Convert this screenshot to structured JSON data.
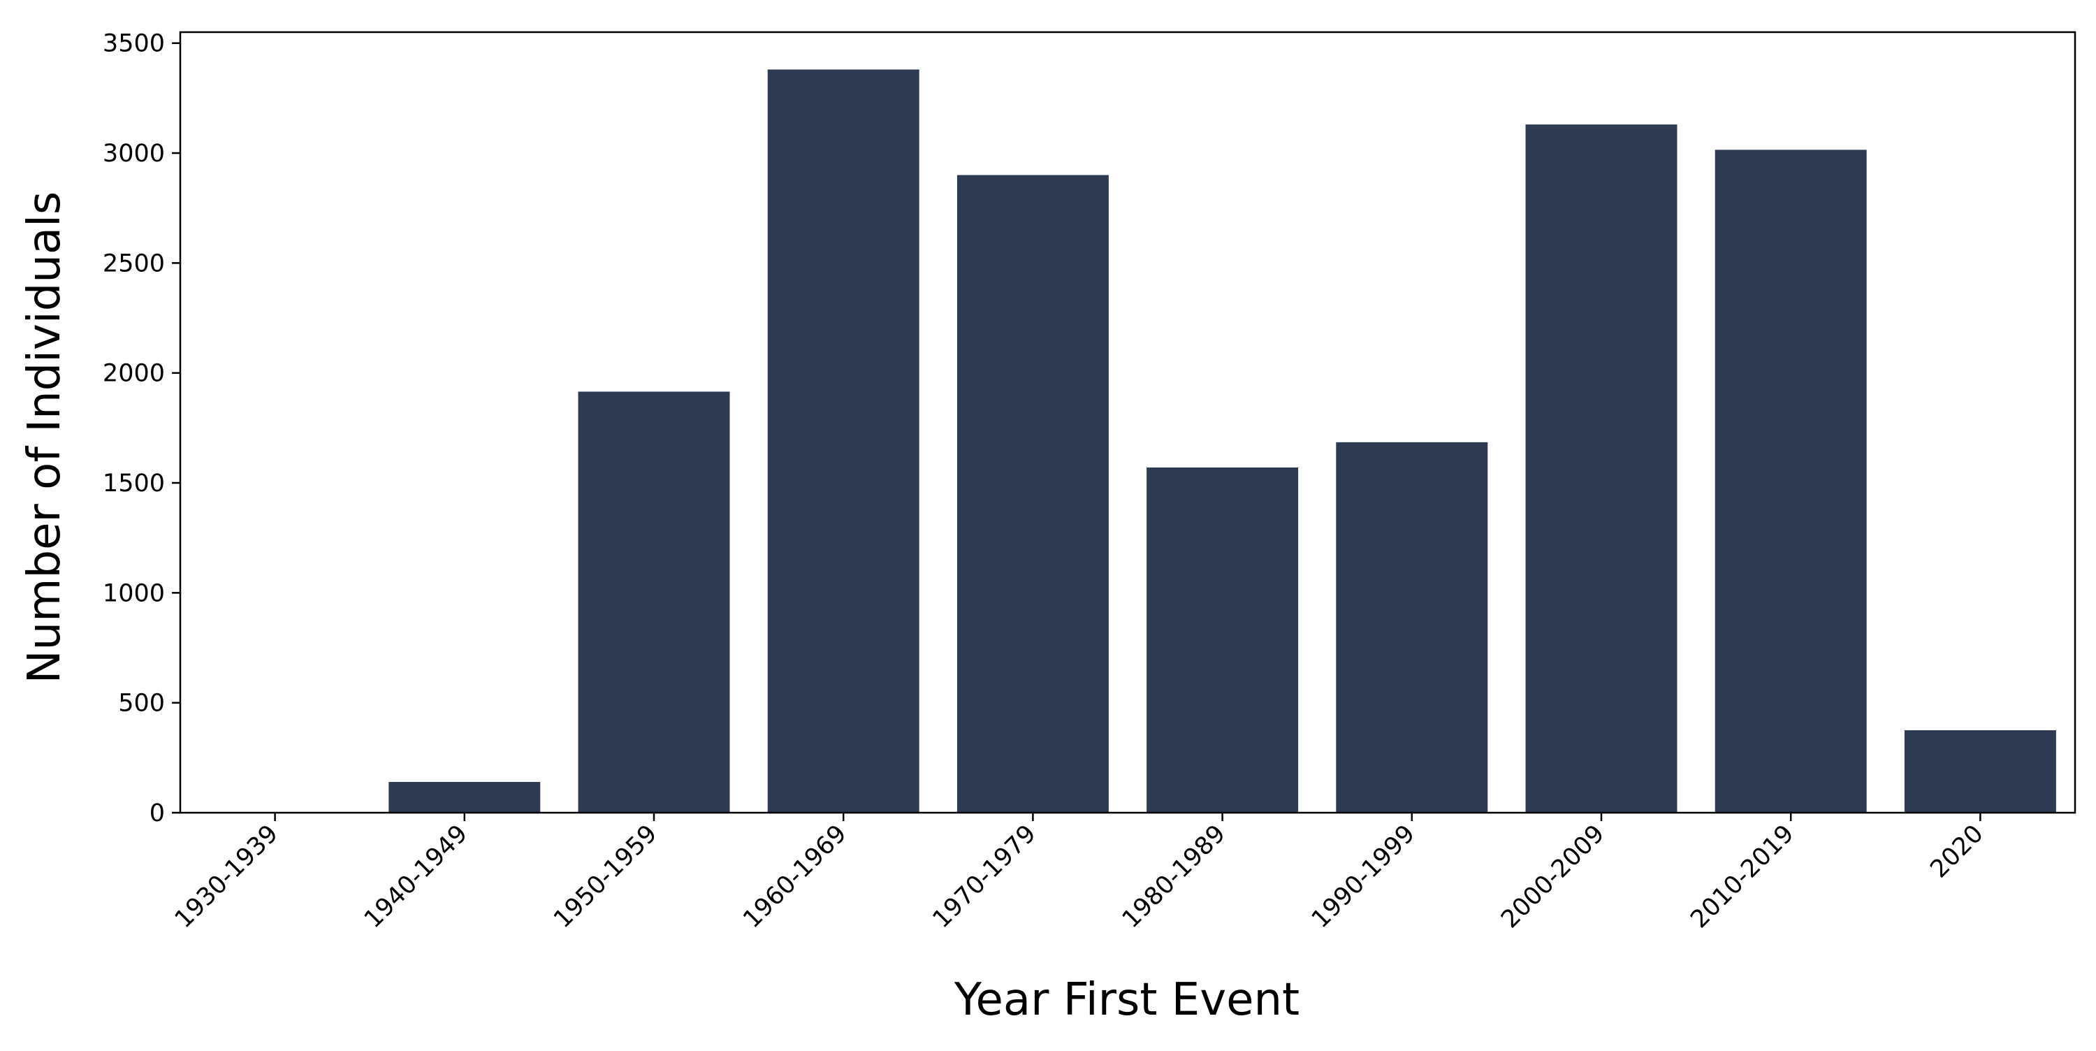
{
  "chart_data": {
    "type": "bar",
    "title": "",
    "xlabel": "Year First Event",
    "ylabel": "Number of Individuals",
    "categories": [
      "1930-1939",
      "1940-1949",
      "1950-1959",
      "1960-1969",
      "1970-1979",
      "1980-1989",
      "1990-1999",
      "2000-2009",
      "2010-2019",
      "2020"
    ],
    "values": [
      2,
      140,
      1915,
      3380,
      2900,
      1570,
      1685,
      3130,
      3015,
      375
    ],
    "ylim": [
      0,
      3550
    ],
    "yticks": [
      0,
      500,
      1000,
      1500,
      2000,
      2500,
      3000,
      3500
    ],
    "grid": false,
    "legend": "none",
    "colors": {
      "bar": "#2e3a52",
      "axis": "#000000",
      "background": "#ffffff"
    }
  }
}
